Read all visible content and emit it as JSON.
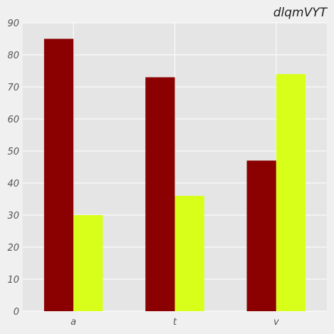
{
  "chart_data": {
    "type": "bar",
    "title": "dlqmVYT",
    "xlabel": "",
    "ylabel": "",
    "categories": [
      "a",
      "t",
      "v"
    ],
    "series": [
      {
        "values": [
          85,
          73,
          47
        ],
        "color": "#8b0000"
      },
      {
        "values": [
          30,
          36,
          74
        ],
        "color": "#d8ff1a"
      }
    ],
    "ylim": [
      0,
      90
    ],
    "yticks": [
      0,
      10,
      20,
      30,
      40,
      50,
      60,
      70,
      80,
      90
    ],
    "grid": true,
    "background": "#e5e5e5",
    "grid_color": "#ffffff"
  }
}
